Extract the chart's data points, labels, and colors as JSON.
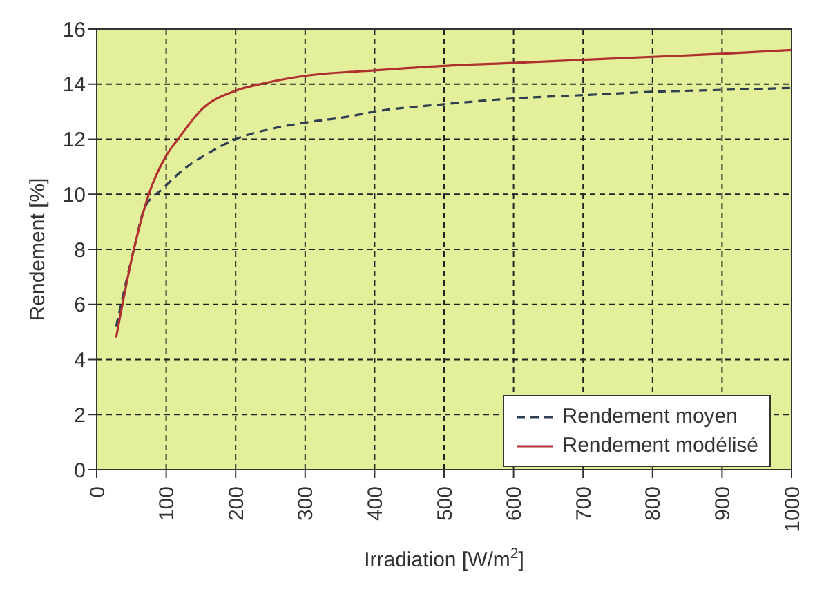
{
  "chart_data": {
    "type": "line",
    "xlabel": "Irradiation [W/m$^{2}$]",
    "ylabel": "Rendement [%]",
    "xlim": [
      0,
      1000
    ],
    "xticks": [
      0,
      100,
      200,
      300,
      400,
      500,
      600,
      700,
      800,
      900,
      1000
    ],
    "ylim": [
      0,
      16
    ],
    "yticks": [
      0,
      2,
      4,
      6,
      8,
      10,
      12,
      14,
      16
    ],
    "grid": true,
    "legend": "bottom right",
    "marker": "none",
    "series": [
      {
        "name": "Rendement moyen",
        "color": "#2c3e50",
        "line_style": "dashed",
        "x": [
          28,
          53,
          69,
          95,
          127,
          158,
          200,
          254,
          300,
          362,
          400,
          500,
          600,
          700,
          800,
          900,
          1000
        ],
        "values": [
          5.2,
          7.95,
          9.5,
          10.2,
          10.94,
          11.45,
          12.0,
          12.39,
          12.6,
          12.82,
          13.0,
          13.27,
          13.48,
          13.6,
          13.72,
          13.79,
          13.86
        ]
      },
      {
        "name": "Rendement modélisé",
        "color": "#b03030",
        "line_style": "solid",
        "x": [
          28,
          53,
          75,
          100,
          117,
          152,
          200,
          241,
          300,
          381,
          400,
          500,
          600,
          700,
          800,
          900,
          1000
        ],
        "values": [
          4.8,
          7.95,
          10.0,
          11.4,
          12.0,
          13.1,
          13.76,
          14.03,
          14.3,
          14.47,
          14.5,
          14.66,
          14.77,
          14.88,
          14.99,
          15.1,
          15.24
        ]
      }
    ]
  }
}
